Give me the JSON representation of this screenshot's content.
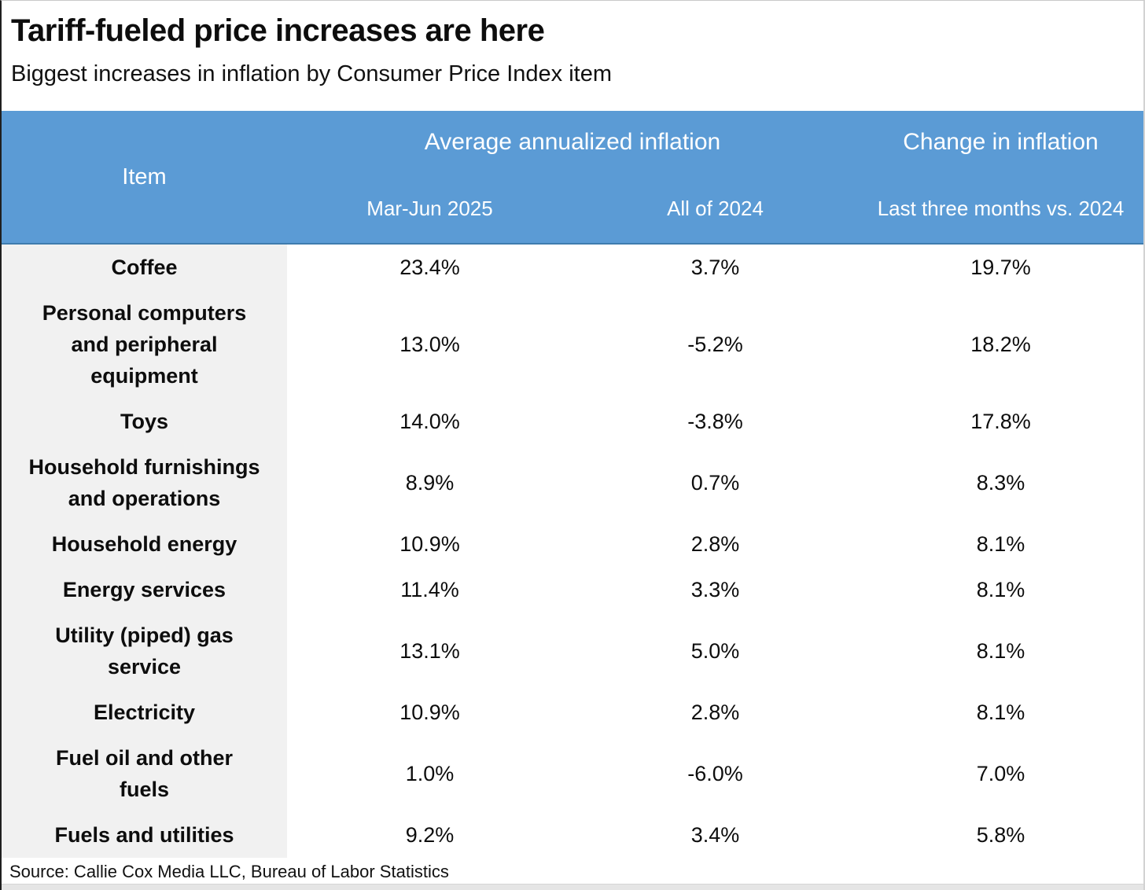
{
  "title": "Tariff-fueled price increases are here",
  "subtitle": "Biggest increases in inflation by Consumer Price Index item",
  "source": "Source: Callie Cox Media LLC, Bureau of Labor Statistics",
  "colors": {
    "header_bg": "#5B9BD5",
    "header_border": "#3F7CAE",
    "item_col_bg": "#F1F1F1"
  },
  "table": {
    "col_item": "Item",
    "group_avg": "Average annualized inflation",
    "group_change": "Change in inflation",
    "sub_mar_jun": "Mar-Jun 2025",
    "sub_all_2024": "All of 2024",
    "sub_change": "Last three months vs. 2024",
    "rows": [
      {
        "item": "Coffee",
        "mar_jun_2025": "23.4%",
        "all_2024": "3.7%",
        "change": "19.7%"
      },
      {
        "item": "Personal computers\nand peripheral\nequipment",
        "mar_jun_2025": "13.0%",
        "all_2024": "-5.2%",
        "change": "18.2%"
      },
      {
        "item": "Toys",
        "mar_jun_2025": "14.0%",
        "all_2024": "-3.8%",
        "change": "17.8%"
      },
      {
        "item": "Household furnishings\nand operations",
        "mar_jun_2025": "8.9%",
        "all_2024": "0.7%",
        "change": "8.3%"
      },
      {
        "item": "Household energy",
        "mar_jun_2025": "10.9%",
        "all_2024": "2.8%",
        "change": "8.1%"
      },
      {
        "item": "Energy services",
        "mar_jun_2025": "11.4%",
        "all_2024": "3.3%",
        "change": "8.1%"
      },
      {
        "item": "Utility (piped) gas\nservice",
        "mar_jun_2025": "13.1%",
        "all_2024": "5.0%",
        "change": "8.1%"
      },
      {
        "item": "Electricity",
        "mar_jun_2025": "10.9%",
        "all_2024": "2.8%",
        "change": "8.1%"
      },
      {
        "item": "Fuel oil and other\nfuels",
        "mar_jun_2025": "1.0%",
        "all_2024": "-6.0%",
        "change": "7.0%"
      },
      {
        "item": "Fuels and utilities",
        "mar_jun_2025": "9.2%",
        "all_2024": "3.4%",
        "change": "5.8%"
      }
    ]
  },
  "chart_data": {
    "type": "table",
    "title": "Tariff-fueled price increases are here",
    "subtitle": "Biggest increases in inflation by Consumer Price Index item",
    "units": "%",
    "columns": [
      "Item",
      "Average annualized inflation — Mar-Jun 2025",
      "Average annualized inflation — All of 2024",
      "Change in inflation — Last three months vs. 2024"
    ],
    "rows": [
      [
        "Coffee",
        23.4,
        3.7,
        19.7
      ],
      [
        "Personal computers and peripheral equipment",
        13.0,
        -5.2,
        18.2
      ],
      [
        "Toys",
        14.0,
        -3.8,
        17.8
      ],
      [
        "Household furnishings and operations",
        8.9,
        0.7,
        8.3
      ],
      [
        "Household energy",
        10.9,
        2.8,
        8.1
      ],
      [
        "Energy services",
        11.4,
        3.3,
        8.1
      ],
      [
        "Utility (piped) gas service",
        13.1,
        5.0,
        8.1
      ],
      [
        "Electricity",
        10.9,
        2.8,
        8.1
      ],
      [
        "Fuel oil and other fuels",
        1.0,
        -6.0,
        7.0
      ],
      [
        "Fuels and utilities",
        9.2,
        3.4,
        5.8
      ]
    ],
    "source": "Source: Callie Cox Media LLC, Bureau of Labor Statistics"
  }
}
